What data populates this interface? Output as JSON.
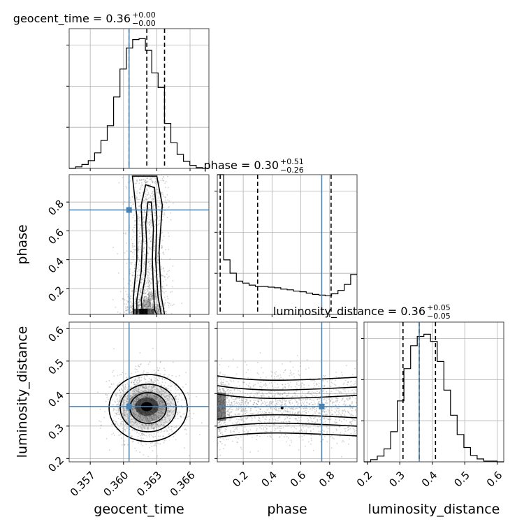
{
  "chart_data": {
    "type": "corner",
    "parameters": [
      "geocent_time",
      "phase",
      "luminosity_distance"
    ],
    "colors": {
      "truth": "#4682b4",
      "hist": "#000000",
      "grid": "#b0b0b0",
      "sample": "#808080"
    },
    "grid": true,
    "titles": [
      {
        "param": "geocent_time",
        "text": "geocent_time = 0.36",
        "sup": "+0.00",
        "sub": "−0.00"
      },
      {
        "param": "phase",
        "text": "phase = 0.30",
        "sup": "+0.51",
        "sub": "−0.26"
      },
      {
        "param": "luminosity_distance",
        "text": "luminosity_distance = 0.36",
        "sup": "+0.05",
        "sub": "−0.05"
      }
    ],
    "axes": {
      "geocent_time": {
        "range": [
          0.3551,
          0.3677
        ],
        "ticks": [
          0.357,
          0.36,
          0.363,
          0.366
        ],
        "tick_labels": [
          "0.357",
          "0.360",
          "0.363",
          "0.366"
        ],
        "label": "geocent_time"
      },
      "phase": {
        "range": [
          0.02,
          0.99
        ],
        "ticks": [
          0.2,
          0.4,
          0.6,
          0.8
        ],
        "tick_labels": [
          "0.2",
          "0.4",
          "0.6",
          "0.8"
        ],
        "label": "phase"
      },
      "luminosity_distance": {
        "range": [
          0.19,
          0.62
        ],
        "ticks": [
          0.2,
          0.3,
          0.4,
          0.5,
          0.6
        ],
        "tick_labels": [
          "0.2",
          "0.3",
          "0.4",
          "0.5",
          "0.6"
        ],
        "label": "luminosity_distance"
      }
    },
    "truths": {
      "geocent_time": 0.3605,
      "phase": 0.745,
      "luminosity_distance": 0.36
    },
    "histograms": {
      "geocent_time": {
        "range": [
          0.3551,
          0.3677
        ],
        "counts": [
          0,
          2,
          5,
          10,
          20,
          36,
          55,
          92,
          128,
          155,
          166,
          167,
          152,
          123,
          104,
          58,
          33,
          18,
          9,
          4,
          1,
          0
        ],
        "quantiles": [
          0.3605,
          0.3621,
          0.3637
        ],
        "ymax": 180
      },
      "phase": {
        "range": [
          0.02,
          0.99
        ],
        "counts": [
          210,
          82,
          62,
          50,
          47,
          44,
          42,
          42,
          41,
          40,
          38,
          37,
          35,
          34,
          32,
          30,
          29,
          28,
          31,
          36,
          45,
          60
        ],
        "quantiles": [
          0.04,
          0.3,
          0.81
        ],
        "ymax": 210
      },
      "luminosity_distance": {
        "range": [
          0.19,
          0.62
        ],
        "counts": [
          0,
          3,
          8,
          18,
          42,
          85,
          130,
          162,
          175,
          178,
          168,
          140,
          100,
          65,
          38,
          20,
          9,
          4,
          1,
          1,
          0
        ],
        "quantiles": [
          0.31,
          0.36,
          0.41
        ],
        "ymax": 195
      }
    },
    "pairs": [
      {
        "x": "geocent_time",
        "y": "phase",
        "note": "samples concentrated near geocent_time 0.3618-0.3628 with dense band at phase < 0.1"
      },
      {
        "x": "geocent_time",
        "y": "luminosity_distance",
        "mean": [
          0.3621,
          0.36
        ],
        "sd": [
          0.0012,
          0.045
        ]
      },
      {
        "x": "phase",
        "y": "luminosity_distance",
        "mean_y": 0.36,
        "sd_y": 0.05
      }
    ]
  }
}
